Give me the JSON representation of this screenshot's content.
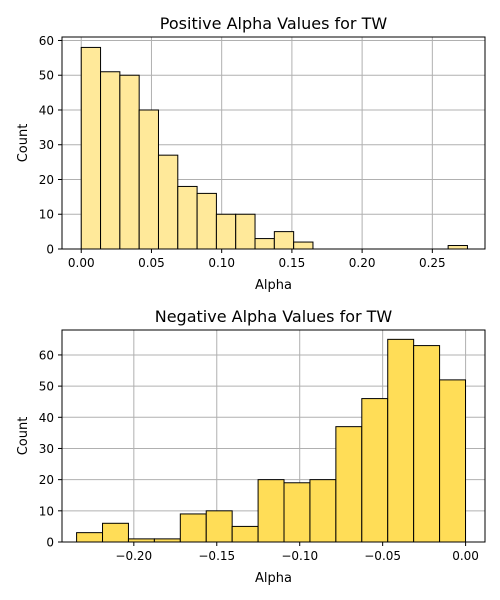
{
  "chart_data": [
    {
      "type": "bar",
      "title": "Positive Alpha Values for TW",
      "xlabel": "Alpha",
      "ylabel": "Count",
      "xlim": [
        -0.0137,
        0.2875
      ],
      "ylim": [
        0,
        61
      ],
      "bin_width": 0.01375,
      "bin_edges": [
        0.0,
        0.01375,
        0.0275,
        0.04125,
        0.055,
        0.06875,
        0.0825,
        0.09625,
        0.11,
        0.12375,
        0.1375,
        0.15125,
        0.165,
        0.17875,
        0.1925,
        0.20625,
        0.22,
        0.23375,
        0.2475,
        0.26125,
        0.275
      ],
      "values": [
        58,
        51,
        50,
        40,
        27,
        18,
        16,
        10,
        10,
        3,
        5,
        2,
        0,
        0,
        0,
        0,
        0,
        0,
        0,
        1
      ],
      "xticks": [
        0.0,
        0.05,
        0.1,
        0.15,
        0.2,
        0.25
      ],
      "xtick_labels": [
        "0.00",
        "0.05",
        "0.10",
        "0.15",
        "0.20",
        "0.25"
      ],
      "yticks": [
        0,
        10,
        20,
        30,
        40,
        50,
        60
      ],
      "ytick_labels": [
        "0",
        "10",
        "20",
        "30",
        "40",
        "50",
        "60"
      ],
      "grid": true,
      "bar_color": "#ffe99a",
      "edge_color": "#000000"
    },
    {
      "type": "bar",
      "title": "Negative Alpha Values for TW",
      "xlabel": "Alpha",
      "ylabel": "Count",
      "xlim": [
        -0.2433,
        0.0117
      ],
      "ylim": [
        0,
        68
      ],
      "bin_width": 0.01563,
      "bin_edges": [
        -0.2345,
        -0.21887,
        -0.20324,
        -0.18761,
        -0.17198,
        -0.15635,
        -0.14072,
        -0.12509,
        -0.10946,
        -0.09383,
        -0.0782,
        -0.06257,
        -0.04694,
        -0.03131,
        -0.01568,
        0.0
      ],
      "values": [
        3,
        6,
        1,
        1,
        9,
        10,
        5,
        20,
        19,
        20,
        37,
        46,
        65,
        63,
        52
      ],
      "xticks": [
        -0.2,
        -0.15,
        -0.1,
        -0.05,
        0.0
      ],
      "xtick_labels": [
        "−0.20",
        "−0.15",
        "−0.10",
        "−0.05",
        "0.00"
      ],
      "yticks": [
        0,
        10,
        20,
        30,
        40,
        50,
        60
      ],
      "ytick_labels": [
        "0",
        "10",
        "20",
        "30",
        "40",
        "50",
        "60"
      ],
      "grid": true,
      "bar_color": "#ffdd57",
      "edge_color": "#000000"
    }
  ]
}
